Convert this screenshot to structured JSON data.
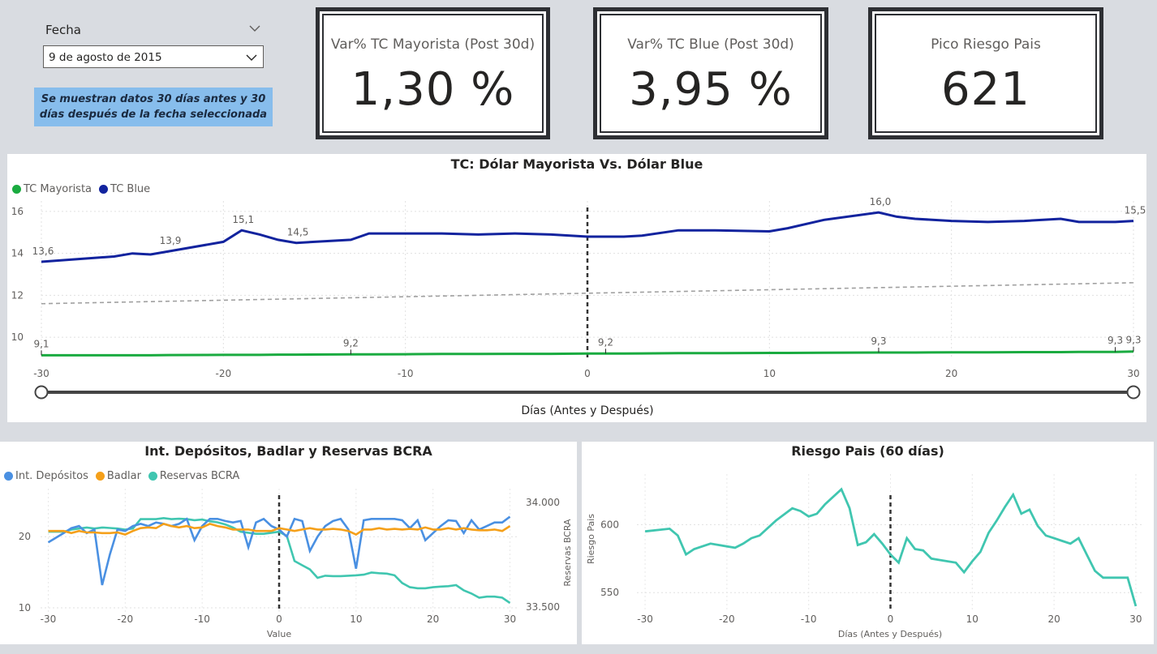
{
  "slicer": {
    "title": "Fecha",
    "selected": "9 de agosto de 2015",
    "note": "Se muestran datos 30 días antes y 30 días después de la fecha seleccionada"
  },
  "kpis": [
    {
      "title": "Var% TC Mayorista (Post 30d)",
      "value": "1,30 %"
    },
    {
      "title": "Var% TC Blue (Post 30d)",
      "value": "3,95 %"
    },
    {
      "title": "Pico Riesgo Pais",
      "value": "621"
    }
  ],
  "colors": {
    "mayorista": "#1aab40",
    "blue": "#12239e",
    "depositos": "#4a90e2",
    "badlar": "#f5a01a",
    "reservas": "#40c6b0",
    "riesgo": "#40c6b0",
    "trend": "#a0a0a0"
  },
  "main_chart": {
    "title": "TC: Dólar Mayorista Vs. Dólar Blue",
    "xlabel": "Días (Antes y Después)",
    "x_ticks": [
      "-30",
      "-20",
      "-10",
      "0",
      "10",
      "20",
      "30"
    ],
    "y_ticks": [
      "10",
      "12",
      "14",
      "16"
    ],
    "legend": [
      "TC Mayorista",
      "TC Blue"
    ],
    "data_labels_blue": [
      "13,6",
      "13,9",
      "15,1",
      "14,5",
      "16,0",
      "15,5"
    ],
    "data_labels_mayorista": [
      "9,1",
      "9,2",
      "9,2",
      "9,3",
      "9,3",
      "9,3"
    ]
  },
  "rates_chart": {
    "title": "Int. Depósitos, Badlar y Reservas BCRA",
    "legend": [
      "Int. Depósitos",
      "Badlar",
      "Reservas BCRA"
    ],
    "xlabel": "Value",
    "y2label": "Reservas BCRA",
    "x_ticks": [
      "-30",
      "-20",
      "-10",
      "0",
      "10",
      "20",
      "30"
    ],
    "y_ticks": [
      "10",
      "20"
    ],
    "y2_ticks": [
      "34.000",
      "33.500"
    ]
  },
  "riesgo_chart": {
    "title": "Riesgo Pais (60 días)",
    "xlabel": "Días (Antes y Después)",
    "ylabel": "Riesgo Pais",
    "x_ticks": [
      "-30",
      "-20",
      "-10",
      "0",
      "10",
      "20",
      "30"
    ],
    "y_ticks": [
      "550",
      "600"
    ]
  },
  "chart_data": [
    {
      "type": "line",
      "title": "TC: Dólar Mayorista Vs. Dólar Blue",
      "xlabel": "Días (Antes y Después)",
      "ylabel": "",
      "xlim": [
        -30,
        30
      ],
      "ylim": [
        9,
        16.5
      ],
      "x": [
        -30,
        -26,
        -25,
        -24,
        -23,
        -20,
        -19,
        -18,
        -17,
        -16,
        -13,
        -12,
        -10,
        -8,
        -6,
        -4,
        -2,
        0,
        1,
        2,
        3,
        5,
        7,
        10,
        11,
        13,
        16,
        17,
        18,
        20,
        22,
        24,
        26,
        27,
        29,
        30
      ],
      "series": [
        {
          "name": "TC Blue",
          "values": [
            13.6,
            13.85,
            14.0,
            13.95,
            14.1,
            14.55,
            15.1,
            14.9,
            14.65,
            14.5,
            14.65,
            14.95,
            14.95,
            14.95,
            14.9,
            14.95,
            14.9,
            14.8,
            14.8,
            14.8,
            14.85,
            15.1,
            15.1,
            15.05,
            15.2,
            15.6,
            15.95,
            15.75,
            15.65,
            15.55,
            15.5,
            15.55,
            15.65,
            15.5,
            15.5,
            15.55
          ]
        },
        {
          "name": "TC Mayorista",
          "values": [
            9.14,
            9.14,
            9.14,
            9.14,
            9.15,
            9.16,
            9.16,
            9.16,
            9.17,
            9.17,
            9.18,
            9.18,
            9.19,
            9.2,
            9.2,
            9.21,
            9.21,
            9.22,
            9.22,
            9.22,
            9.23,
            9.24,
            9.24,
            9.25,
            9.25,
            9.26,
            9.27,
            9.27,
            9.27,
            9.28,
            9.28,
            9.29,
            9.29,
            9.3,
            9.3,
            9.32
          ]
        }
      ],
      "trend": {
        "from": [
          -30,
          11.6
        ],
        "to": [
          30,
          12.6
        ]
      },
      "reference_x": 0
    },
    {
      "type": "line",
      "title": "Int. Depósitos, Badlar y Reservas BCRA",
      "xlabel": "Value",
      "xlim": [
        -31,
        31
      ],
      "ylim": [
        10,
        28
      ],
      "y2lim": [
        33400,
        34050
      ],
      "x": [
        -30,
        -28,
        -27,
        -26,
        -25,
        -24,
        -23,
        -22,
        -21,
        -20,
        -19,
        -18,
        -17,
        -16,
        -15,
        -14,
        -13,
        -12,
        -11,
        -10,
        -9,
        -8,
        -7,
        -6,
        -5,
        -4,
        -3,
        -2,
        -1,
        0,
        1,
        2,
        3,
        4,
        5,
        6,
        7,
        8,
        9,
        10,
        11,
        12,
        13,
        14,
        15,
        16,
        17,
        18,
        19,
        20,
        21,
        22,
        23,
        24,
        25,
        26,
        27,
        28,
        29,
        30
      ],
      "series": [
        {
          "name": "Int. Depósitos",
          "axis": "left",
          "values": [
            19.2,
            20.5,
            21.2,
            21.5,
            20.5,
            21.0,
            13.2,
            17.5,
            21.0,
            20.8,
            21.5,
            21.8,
            21.5,
            22.0,
            21.8,
            21.5,
            21.8,
            22.5,
            19.5,
            21.5,
            22.5,
            22.5,
            22.2,
            22.0,
            22.2,
            18.5,
            22.0,
            22.5,
            21.5,
            21.0,
            20.0,
            22.5,
            22.2,
            18.0,
            20.0,
            21.5,
            22.2,
            22.5,
            21.0,
            15.5,
            22.3,
            22.5,
            22.5,
            22.5,
            22.5,
            22.3,
            21.2,
            22.3,
            19.5,
            20.5,
            21.5,
            22.3,
            22.2,
            20.5,
            22.3,
            21.0,
            21.5,
            22.0,
            22.0,
            22.8
          ]
        },
        {
          "name": "Badlar",
          "axis": "left",
          "values": [
            20.8,
            20.8,
            20.5,
            20.8,
            20.6,
            20.6,
            20.5,
            20.5,
            20.6,
            20.3,
            20.8,
            21.2,
            21.3,
            21.2,
            21.8,
            21.5,
            21.3,
            21.5,
            21.2,
            21.3,
            21.8,
            21.5,
            21.3,
            21.0,
            21.0,
            21.0,
            20.8,
            20.8,
            20.8,
            21.2,
            21.0,
            20.8,
            21.0,
            21.2,
            21.0,
            21.0,
            21.1,
            21.0,
            20.8,
            20.3,
            21.0,
            21.0,
            21.2,
            21.0,
            21.1,
            21.0,
            21.1,
            21.0,
            21.3,
            21.0,
            21.0,
            21.2,
            21.0,
            21.2,
            21.0,
            20.9,
            20.9,
            21.0,
            20.8,
            21.5
          ]
        },
        {
          "name": "Reservas BCRA",
          "axis": "right",
          "values": [
            33860,
            33860,
            33870,
            33875,
            33880,
            33875,
            33880,
            33878,
            33875,
            33870,
            33875,
            33920,
            33920,
            33920,
            33925,
            33920,
            33922,
            33920,
            33915,
            33918,
            33910,
            33905,
            33895,
            33880,
            33860,
            33855,
            33850,
            33850,
            33855,
            33860,
            33840,
            33720,
            33700,
            33680,
            33640,
            33650,
            33648,
            33648,
            33650,
            33652,
            33655,
            33665,
            33662,
            33660,
            33652,
            33615,
            33595,
            33590,
            33590,
            33595,
            33598,
            33600,
            33605,
            33580,
            33565,
            33545,
            33550,
            33550,
            33545,
            33520
          ]
        }
      ],
      "reference_x": 0
    },
    {
      "type": "line",
      "title": "Riesgo Pais (60 días)",
      "xlabel": "Días (Antes y Después)",
      "ylabel": "Riesgo Pais",
      "xlim": [
        -31,
        31
      ],
      "ylim": [
        540,
        630
      ],
      "x": [
        -30,
        -27,
        -26,
        -25,
        -24,
        -22,
        -21,
        -19,
        -18,
        -17,
        -16,
        -14,
        -12,
        -11,
        -10,
        -9,
        -8,
        -6,
        -5,
        -4,
        -3,
        -2,
        -1,
        0,
        1,
        2,
        3,
        4,
        5,
        6,
        8,
        9,
        10,
        11,
        12,
        13,
        14,
        15,
        16,
        17,
        18,
        19,
        20,
        21,
        22,
        23,
        24,
        25,
        26,
        27,
        28,
        29,
        30
      ],
      "series": [
        {
          "name": "Riesgo Pais",
          "values": [
            595,
            597,
            592,
            578,
            582,
            586,
            585,
            583,
            586,
            590,
            592,
            603,
            612,
            610,
            606,
            608,
            615,
            626,
            612,
            585,
            587,
            593,
            586,
            578,
            572,
            590,
            582,
            581,
            575,
            574,
            572,
            565,
            573,
            580,
            594,
            603,
            613,
            622,
            608,
            611,
            599,
            592,
            590,
            588,
            586,
            590,
            578,
            566,
            561,
            561,
            561,
            561,
            540
          ]
        }
      ],
      "reference_x": 0
    }
  ]
}
